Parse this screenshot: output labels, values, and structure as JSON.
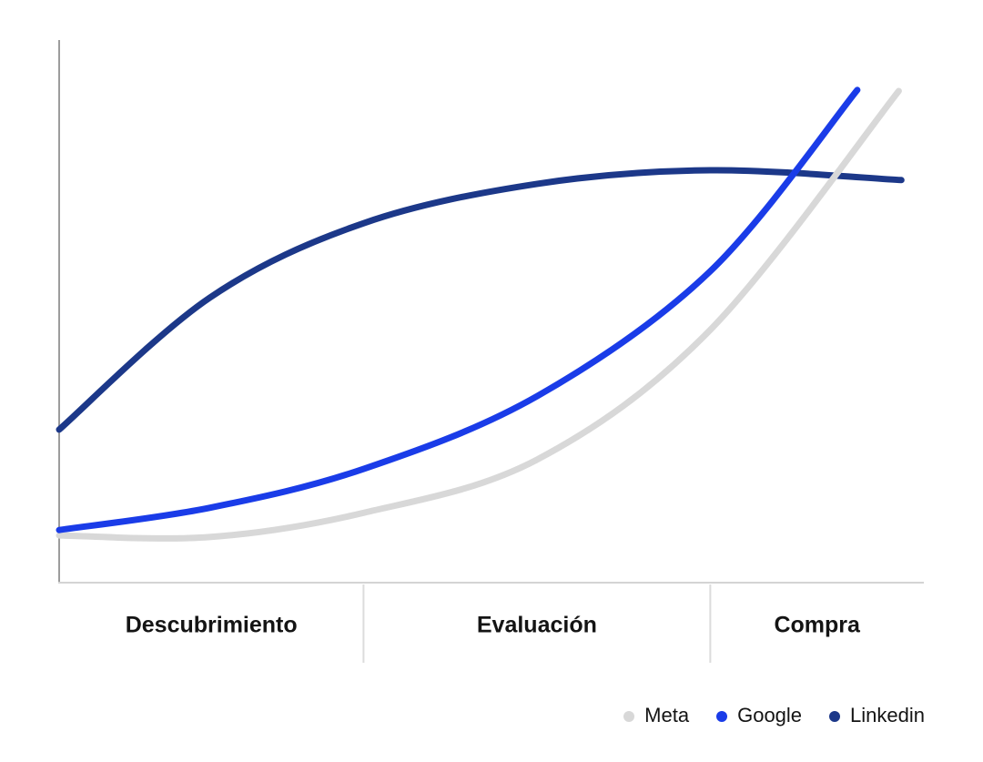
{
  "chart_data": {
    "type": "line",
    "title": "",
    "xlabel": "",
    "ylabel": "",
    "grid": false,
    "x_axis": {
      "phases": [
        {
          "label": "Descubrimiento",
          "start": 0.0,
          "end": 0.352
        },
        {
          "label": "Evaluación",
          "start": 0.352,
          "end": 0.753
        },
        {
          "label": "Compra",
          "start": 0.753,
          "end": 1.0
        }
      ]
    },
    "y_axis": {
      "min": 0,
      "max": 100,
      "ticks": []
    },
    "series": [
      {
        "name": "Meta",
        "color": "#d8d8d8",
        "points": [
          [
            0,
            8.7
          ],
          [
            0.174,
            8.4
          ],
          [
            0.353,
            12.9
          ],
          [
            0.553,
            22.7
          ],
          [
            0.753,
            46.6
          ],
          [
            0.971,
            90.6
          ]
        ]
      },
      {
        "name": "Google",
        "color": "#1a3ce8",
        "points": [
          [
            0,
            9.7
          ],
          [
            0.174,
            13.8
          ],
          [
            0.353,
            21.0
          ],
          [
            0.553,
            34.4
          ],
          [
            0.753,
            57.4
          ],
          [
            0.923,
            90.8
          ]
        ]
      },
      {
        "name": "Linkedin",
        "color": "#1c3889",
        "points": [
          [
            0,
            28.2
          ],
          [
            0.174,
            52.5
          ],
          [
            0.353,
            66.3
          ],
          [
            0.553,
            73.5
          ],
          [
            0.753,
            76.0
          ],
          [
            0.974,
            74.2
          ]
        ]
      }
    ],
    "legend": {
      "position": "bottom-right",
      "entries": [
        "Meta",
        "Google",
        "Linkedin"
      ]
    },
    "draw_order": [
      "Linkedin",
      "Meta",
      "Google"
    ]
  },
  "colors": {
    "y_axis": "#9c9c9c",
    "x_axis": "#d4d4d4",
    "divider": "#dcdcdc",
    "text": "#141414",
    "background": "#ffffff"
  }
}
